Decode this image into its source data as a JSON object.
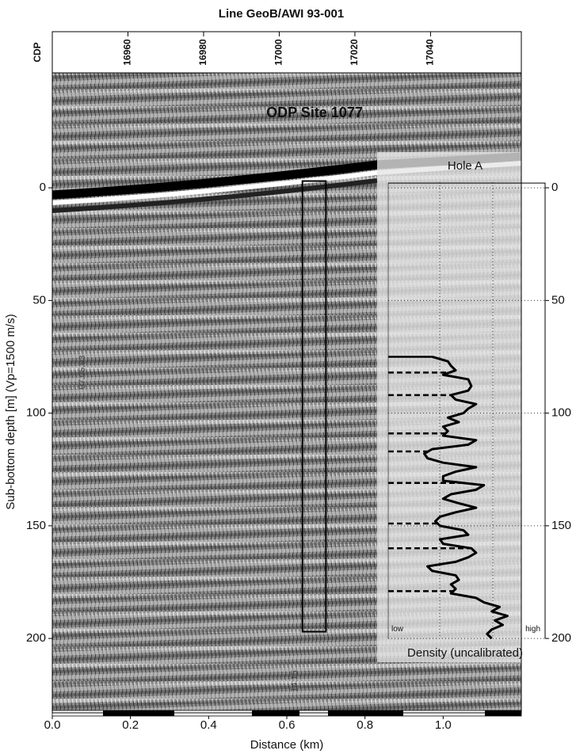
{
  "chart_data": {
    "type": "seismic",
    "title": "Line GeoB/AWI 93-001",
    "x_label": "Distance (km)",
    "y_label": "Sub-bottom depth [m] (Vp=1500 m/s)",
    "x2_label": "CDP",
    "annotation": "ODP Site 1077",
    "stamps": [
      "07.05.93",
      "14:15"
    ],
    "xlim": [
      0,
      1.2
    ],
    "xticks": [
      {
        "value": 0,
        "label": "0.0"
      },
      {
        "value": 0.2,
        "label": "0.2"
      },
      {
        "value": 0.4,
        "label": "0.4"
      },
      {
        "value": 0.6,
        "label": "0.6"
      },
      {
        "value": 0.8,
        "label": "0.8"
      },
      {
        "value": 1,
        "label": "1.0"
      }
    ],
    "x2lim": [
      16940,
      17064
    ],
    "x2ticks": [
      16960,
      16980,
      17000,
      17020,
      17040
    ],
    "ylim": [
      -51,
      233
    ],
    "y_inverted": true,
    "yticks": [
      0,
      50,
      100,
      150,
      200
    ],
    "hole_box": {
      "x": [
        0.64,
        0.7
      ],
      "depth": [
        -3,
        197
      ]
    },
    "inset": {
      "title": "Hole A",
      "x_label": "Density (uncalibrated)",
      "xlim": [
        0,
        1
      ],
      "xticks": [
        {
          "value": 0,
          "label": "low"
        },
        {
          "value": 1,
          "label": "high"
        }
      ],
      "yticks": [
        0,
        50,
        100,
        150,
        200
      ],
      "color": "#000000",
      "depth": [
        75,
        77,
        79,
        81,
        83,
        85,
        88,
        90,
        92,
        94,
        96,
        98,
        100,
        102,
        104,
        106,
        108,
        110,
        112,
        114,
        116,
        118,
        120,
        122,
        124,
        126,
        128,
        130,
        132,
        134,
        136,
        138,
        140,
        142,
        144,
        146,
        148,
        150,
        152,
        154,
        156,
        158,
        160,
        162,
        164,
        166,
        168,
        170,
        172,
        174,
        176,
        178,
        180,
        182,
        184,
        186,
        188,
        190,
        192,
        194,
        196,
        198,
        200
      ],
      "density": [
        0.28,
        0.38,
        0.4,
        0.43,
        0.35,
        0.51,
        0.53,
        0.51,
        0.4,
        0.43,
        0.56,
        0.51,
        0.48,
        0.38,
        0.45,
        0.35,
        0.38,
        0.35,
        0.56,
        0.51,
        0.28,
        0.23,
        0.25,
        0.35,
        0.56,
        0.43,
        0.35,
        0.35,
        0.61,
        0.56,
        0.4,
        0.35,
        0.45,
        0.56,
        0.43,
        0.33,
        0.3,
        0.33,
        0.48,
        0.51,
        0.33,
        0.35,
        0.53,
        0.56,
        0.51,
        0.43,
        0.25,
        0.28,
        0.43,
        0.45,
        0.4,
        0.43,
        0.4,
        0.56,
        0.61,
        0.71,
        0.66,
        0.76,
        0.68,
        0.73,
        0.66,
        0.63,
        0.66
      ],
      "horizons": [
        82,
        92,
        109,
        117,
        131,
        149,
        160,
        179
      ]
    }
  }
}
